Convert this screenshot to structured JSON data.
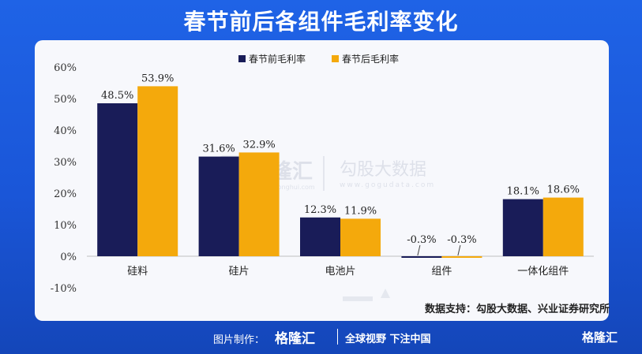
{
  "title": "春节前后各组件毛利率变化",
  "source": "数据支持：勾股大数据、兴业证券研究所",
  "footer": {
    "credit": "图片制作：",
    "logo": "格隆汇",
    "slogan": "全球视野 下注中国",
    "logo_right": "格隆汇"
  },
  "watermark": {
    "left": "格隆汇",
    "left_sub": "www.gelonghui.com",
    "right": "勾股大数据",
    "right_sub": "www.gogudata.com"
  },
  "colors": {
    "series1": "#191c58",
    "series2": "#f4a90c",
    "axis_text": "#333333"
  },
  "chart_data": {
    "type": "bar",
    "categories": [
      "硅料",
      "硅片",
      "电池片",
      "组件",
      "一体化组件"
    ],
    "series": [
      {
        "name": "春节前毛利率",
        "values": [
          48.5,
          31.6,
          12.3,
          -0.3,
          18.1
        ],
        "labels": [
          "48.5%",
          "31.6%",
          "12.3%",
          "-0.3%",
          "18.1%"
        ]
      },
      {
        "name": "春节后毛利率",
        "values": [
          53.9,
          32.9,
          11.9,
          -0.3,
          18.6
        ],
        "labels": [
          "53.9%",
          "32.9%",
          "11.9%",
          "-0.3%",
          "18.6%"
        ]
      }
    ],
    "yticks": [
      60,
      50,
      40,
      30,
      20,
      10,
      0,
      -10
    ],
    "ytick_labels": [
      "60%",
      "50%",
      "40%",
      "30%",
      "20%",
      "10%",
      "0%",
      "-10%"
    ],
    "ylim": [
      -10,
      60
    ],
    "legend_position": "top",
    "grid": false
  }
}
